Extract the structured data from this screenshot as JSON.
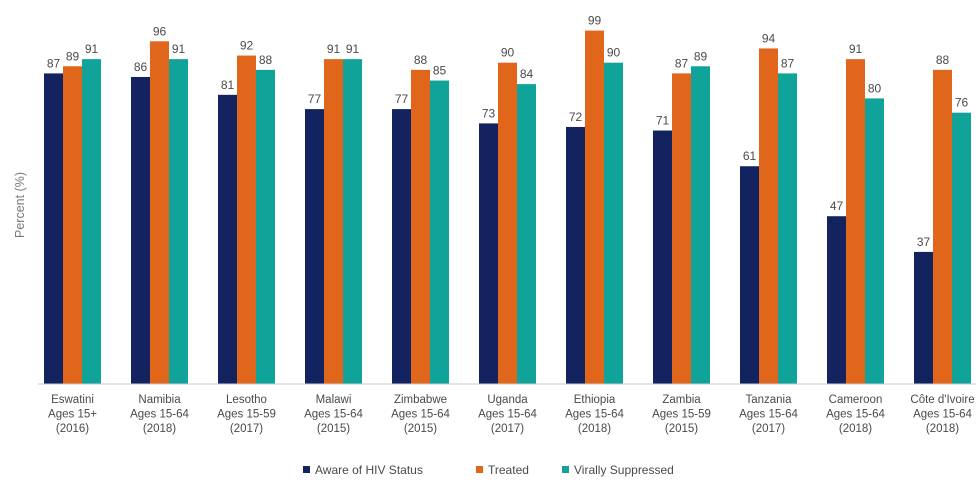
{
  "chart_data": {
    "type": "bar",
    "ylabel": "Percent (%)",
    "xlabel": "",
    "ylim": [
      0,
      100
    ],
    "grid": false,
    "legend_position": "bottom",
    "categories": [
      [
        "Eswatini",
        "Ages 15+",
        "(2016)"
      ],
      [
        "Namibia",
        "Ages 15-64",
        "(2018)"
      ],
      [
        "Lesotho",
        "Ages 15-59",
        "(2017)"
      ],
      [
        "Malawi",
        "Ages 15-64",
        "(2015)"
      ],
      [
        "Zimbabwe",
        "Ages 15-64",
        "(2015)"
      ],
      [
        "Uganda",
        "Ages 15-64",
        "(2017)"
      ],
      [
        "Ethiopia",
        "Ages 15-64",
        "(2018)"
      ],
      [
        "Zambia",
        "Ages 15-59",
        "(2015)"
      ],
      [
        "Tanzania",
        "Ages 15-64",
        "(2017)"
      ],
      [
        "Cameroon",
        "Ages 15-64",
        "(2018)"
      ],
      [
        "Côte d'Ivoire",
        "Ages 15-64",
        "(2018)"
      ]
    ],
    "series": [
      {
        "name": "Aware of HIV Status",
        "color": "#12235f",
        "values": [
          87,
          86,
          81,
          77,
          77,
          73,
          72,
          71,
          61,
          47,
          37
        ]
      },
      {
        "name": "Treated",
        "color": "#e0661c",
        "values": [
          89,
          96,
          92,
          91,
          88,
          90,
          99,
          87,
          94,
          91,
          88
        ]
      },
      {
        "name": "Virally Suppressed",
        "color": "#10a39a",
        "values": [
          91,
          91,
          88,
          91,
          85,
          84,
          90,
          89,
          87,
          80,
          76
        ]
      }
    ]
  }
}
